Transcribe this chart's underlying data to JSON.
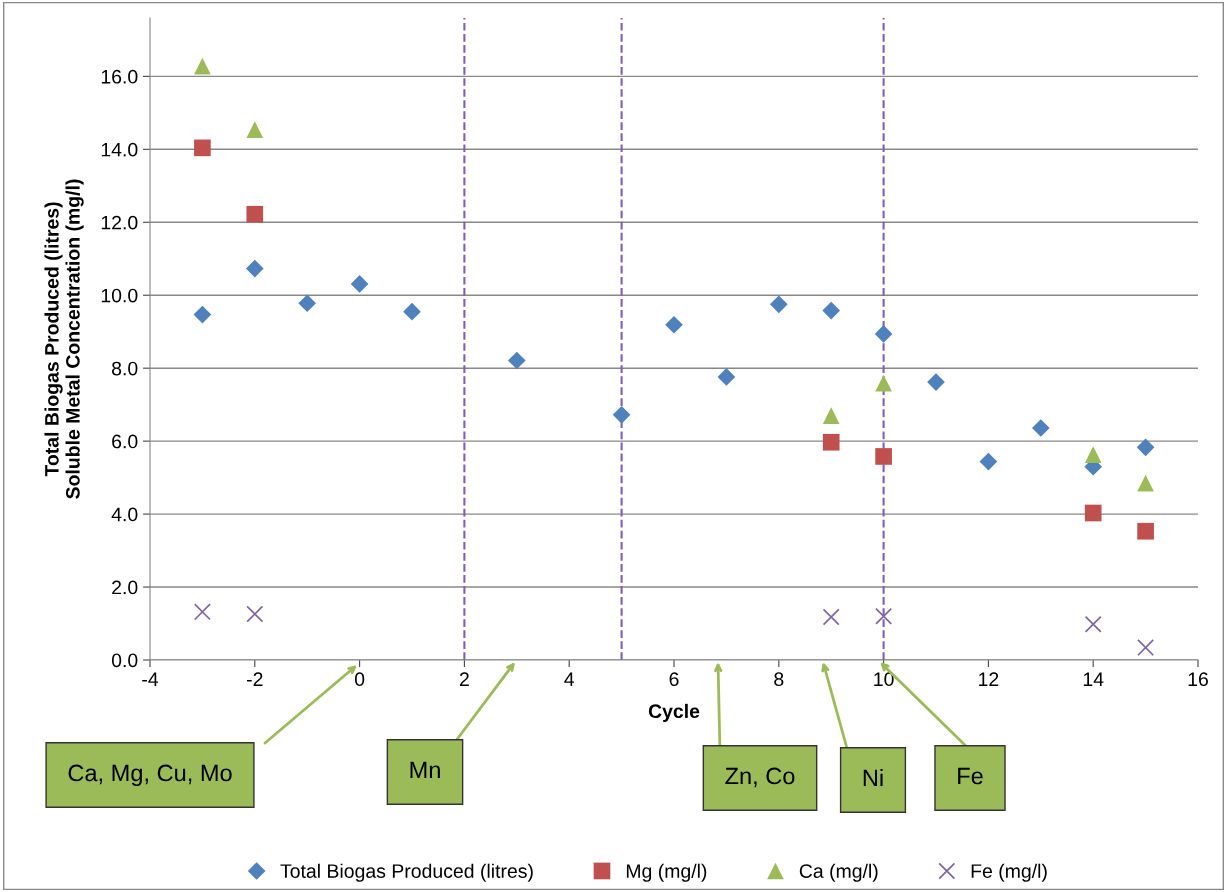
{
  "chart_data": {
    "type": "scatter",
    "xlabel": "Cycle",
    "ylabel": "Total Biogas Produced (litres)\nSoluble Metal Concentration (mg/l)",
    "xlim": [
      -4,
      16
    ],
    "xticks": [
      -4,
      -2,
      0,
      2,
      4,
      6,
      8,
      10,
      12,
      14,
      16
    ],
    "ylim": [
      0,
      17.6
    ],
    "yticks": [
      {
        "value": 0,
        "label": "0.0"
      },
      {
        "value": 2,
        "label": "2.0"
      },
      {
        "value": 4,
        "label": "4.0"
      },
      {
        "value": 6,
        "label": "6.0"
      },
      {
        "value": 8,
        "label": "8.0"
      },
      {
        "value": 10,
        "label": "10.0"
      },
      {
        "value": 12,
        "label": "12.0"
      },
      {
        "value": 14,
        "label": "14.0"
      },
      {
        "value": 16,
        "label": "16.0"
      }
    ],
    "grid": "y",
    "legend": "bottom",
    "series": [
      {
        "name": "Total Biogas Produced (litres)",
        "color": "#4f81bd",
        "marker": "diamond",
        "x": [
          -3,
          -2,
          -1,
          0,
          1,
          3,
          5,
          6,
          7,
          8,
          9,
          10,
          11,
          12,
          13,
          14,
          15
        ],
        "values": [
          9.47,
          10.73,
          9.78,
          10.31,
          9.55,
          8.21,
          6.72,
          9.19,
          7.76,
          9.75,
          9.58,
          8.94,
          7.62,
          5.44,
          6.36,
          5.3,
          5.83
        ]
      },
      {
        "name": "Mg (mg/l)",
        "color": "#c0504d",
        "marker": "square",
        "x": [
          -3,
          -2,
          9,
          10,
          14,
          15
        ],
        "values": [
          14.04,
          12.22,
          5.97,
          5.58,
          4.03,
          3.53
        ]
      },
      {
        "name": "Ca (mg/l)",
        "color": "#9bbb59",
        "marker": "triangle",
        "x": [
          -3,
          -2,
          9,
          10,
          14,
          15
        ],
        "values": [
          16.28,
          14.54,
          6.7,
          7.59,
          5.63,
          4.85
        ]
      },
      {
        "name": "Fe (mg/l)",
        "color": "#8064a2",
        "marker": "cross",
        "x": [
          -3,
          -2,
          9,
          10,
          14,
          15
        ],
        "values": [
          1.32,
          1.26,
          1.18,
          1.2,
          0.98,
          0.34
        ]
      }
    ],
    "ref_lines": [
      {
        "axis": "x",
        "value": 2,
        "color": "#7f5fb0",
        "line_style": "dashed"
      },
      {
        "axis": "x",
        "value": 5,
        "color": "#7f5fb0",
        "line_style": "dashed"
      },
      {
        "axis": "x",
        "value": 10,
        "color": "#7f5fb0",
        "line_style": "dashed"
      }
    ],
    "annotations": [
      "Ca, Mg, Cu, Mo",
      "Mn",
      "Zn, Co",
      "Ni",
      "Fe"
    ]
  }
}
